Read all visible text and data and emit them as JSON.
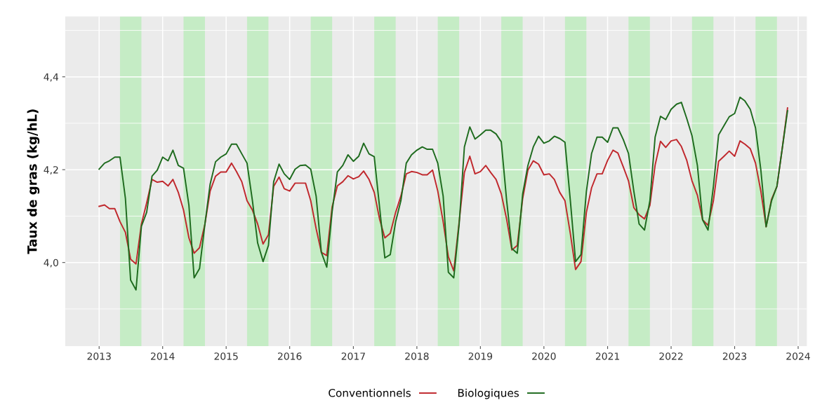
{
  "chart_data": {
    "type": "line",
    "ylabel": "Taux de gras (kg/hL)",
    "x": [
      "2013-01",
      "2013-02",
      "2013-03",
      "2013-04",
      "2013-05",
      "2013-06",
      "2013-07",
      "2013-08",
      "2013-09",
      "2013-10",
      "2013-11",
      "2013-12",
      "2014-01",
      "2014-02",
      "2014-03",
      "2014-04",
      "2014-05",
      "2014-06",
      "2014-07",
      "2014-08",
      "2014-09",
      "2014-10",
      "2014-11",
      "2014-12",
      "2015-01",
      "2015-02",
      "2015-03",
      "2015-04",
      "2015-05",
      "2015-06",
      "2015-07",
      "2015-08",
      "2015-09",
      "2015-10",
      "2015-11",
      "2015-12",
      "2016-01",
      "2016-02",
      "2016-03",
      "2016-04",
      "2016-05",
      "2016-06",
      "2016-07",
      "2016-08",
      "2016-09",
      "2016-10",
      "2016-11",
      "2016-12",
      "2017-01",
      "2017-02",
      "2017-03",
      "2017-04",
      "2017-05",
      "2017-06",
      "2017-07",
      "2017-08",
      "2017-09",
      "2017-10",
      "2017-11",
      "2017-12",
      "2018-01",
      "2018-02",
      "2018-03",
      "2018-04",
      "2018-05",
      "2018-06",
      "2018-07",
      "2018-08",
      "2018-09",
      "2018-10",
      "2018-11",
      "2018-12",
      "2019-01",
      "2019-02",
      "2019-03",
      "2019-04",
      "2019-05",
      "2019-06",
      "2019-07",
      "2019-08",
      "2019-09",
      "2019-10",
      "2019-11",
      "2019-12",
      "2020-01",
      "2020-02",
      "2020-03",
      "2020-04",
      "2020-05",
      "2020-06",
      "2020-07",
      "2020-08",
      "2020-09",
      "2020-10",
      "2020-11",
      "2020-12",
      "2021-01",
      "2021-02",
      "2021-03",
      "2021-04",
      "2021-05",
      "2021-06",
      "2021-07",
      "2021-08",
      "2021-09",
      "2021-10",
      "2021-11",
      "2021-12",
      "2022-01",
      "2022-02",
      "2022-03",
      "2022-04",
      "2022-05",
      "2022-06",
      "2022-07",
      "2022-08",
      "2022-09",
      "2022-10",
      "2022-11",
      "2022-12",
      "2023-01",
      "2023-02",
      "2023-03",
      "2023-04",
      "2023-05",
      "2023-06",
      "2023-07",
      "2023-08",
      "2023-09",
      "2023-10",
      "2023-11"
    ],
    "series": [
      {
        "name": "Conventionnels",
        "color": "#c0282d",
        "values": [
          4.121,
          4.124,
          4.116,
          4.116,
          4.088,
          4.065,
          4.007,
          3.997,
          4.083,
          4.128,
          4.179,
          4.173,
          4.175,
          4.165,
          4.179,
          4.151,
          4.113,
          4.053,
          4.02,
          4.032,
          4.083,
          4.154,
          4.186,
          4.195,
          4.195,
          4.214,
          4.196,
          4.174,
          4.133,
          4.113,
          4.083,
          4.04,
          4.06,
          4.164,
          4.184,
          4.159,
          4.154,
          4.171,
          4.171,
          4.171,
          4.133,
          4.073,
          4.022,
          4.015,
          4.12,
          4.165,
          4.174,
          4.187,
          4.18,
          4.185,
          4.197,
          4.179,
          4.151,
          4.093,
          4.053,
          4.063,
          4.108,
          4.143,
          4.191,
          4.196,
          4.194,
          4.189,
          4.189,
          4.199,
          4.154,
          4.088,
          4.012,
          3.982,
          4.088,
          4.194,
          4.229,
          4.191,
          4.196,
          4.209,
          4.194,
          4.179,
          4.148,
          4.093,
          4.027,
          4.037,
          4.138,
          4.199,
          4.219,
          4.212,
          4.189,
          4.191,
          4.179,
          4.151,
          4.133,
          4.062,
          3.985,
          4.002,
          4.108,
          4.161,
          4.191,
          4.191,
          4.22,
          4.242,
          4.236,
          4.206,
          4.176,
          4.118,
          4.103,
          4.094,
          4.123,
          4.21,
          4.261,
          4.248,
          4.262,
          4.265,
          4.25,
          4.22,
          4.176,
          4.145,
          4.092,
          4.08,
          4.133,
          4.218,
          4.229,
          4.24,
          4.229,
          4.262,
          4.255,
          4.245,
          4.214,
          4.153,
          4.077,
          4.136,
          4.164,
          4.244,
          4.333
        ]
      },
      {
        "name": "Biologiques",
        "color": "#1e6b1e",
        "values": [
          4.201,
          4.214,
          4.219,
          4.227,
          4.227,
          4.138,
          3.962,
          3.941,
          4.078,
          4.108,
          4.186,
          4.199,
          4.227,
          4.219,
          4.242,
          4.209,
          4.203,
          4.123,
          3.967,
          3.987,
          4.083,
          4.169,
          4.217,
          4.227,
          4.234,
          4.255,
          4.255,
          4.234,
          4.214,
          4.133,
          4.042,
          4.002,
          4.037,
          4.174,
          4.212,
          4.191,
          4.179,
          4.201,
          4.209,
          4.21,
          4.201,
          4.143,
          4.022,
          3.99,
          4.11,
          4.195,
          4.209,
          4.232,
          4.218,
          4.229,
          4.257,
          4.234,
          4.228,
          4.118,
          4.01,
          4.017,
          4.088,
          4.133,
          4.214,
          4.232,
          4.242,
          4.249,
          4.244,
          4.244,
          4.214,
          4.143,
          3.979,
          3.967,
          4.083,
          4.249,
          4.292,
          4.266,
          4.275,
          4.285,
          4.285,
          4.277,
          4.26,
          4.133,
          4.03,
          4.02,
          4.148,
          4.209,
          4.249,
          4.272,
          4.257,
          4.262,
          4.272,
          4.267,
          4.259,
          4.133,
          4.002,
          4.017,
          4.153,
          4.235,
          4.27,
          4.27,
          4.259,
          4.29,
          4.29,
          4.265,
          4.235,
          4.153,
          4.083,
          4.07,
          4.133,
          4.27,
          4.315,
          4.308,
          4.33,
          4.341,
          4.345,
          4.31,
          4.273,
          4.209,
          4.092,
          4.07,
          4.164,
          4.275,
          4.295,
          4.314,
          4.321,
          4.356,
          4.348,
          4.33,
          4.29,
          4.198,
          4.077,
          4.133,
          4.164,
          4.244,
          4.327
        ]
      }
    ],
    "bands": [
      {
        "axis": "x",
        "from": "2013-05",
        "to": "2013-09",
        "color": "#c5ecc5"
      },
      {
        "axis": "x",
        "from": "2014-05",
        "to": "2014-09",
        "color": "#c5ecc5"
      },
      {
        "axis": "x",
        "from": "2015-05",
        "to": "2015-09",
        "color": "#c5ecc5"
      },
      {
        "axis": "x",
        "from": "2016-05",
        "to": "2016-09",
        "color": "#c5ecc5"
      },
      {
        "axis": "x",
        "from": "2017-05",
        "to": "2017-09",
        "color": "#c5ecc5"
      },
      {
        "axis": "x",
        "from": "2018-05",
        "to": "2018-09",
        "color": "#c5ecc5"
      },
      {
        "axis": "x",
        "from": "2019-05",
        "to": "2019-09",
        "color": "#c5ecc5"
      },
      {
        "axis": "x",
        "from": "2020-05",
        "to": "2020-09",
        "color": "#c5ecc5"
      },
      {
        "axis": "x",
        "from": "2021-05",
        "to": "2021-09",
        "color": "#c5ecc5"
      },
      {
        "axis": "x",
        "from": "2022-05",
        "to": "2022-09",
        "color": "#c5ecc5"
      },
      {
        "axis": "x",
        "from": "2023-05",
        "to": "2023-09",
        "color": "#c5ecc5"
      }
    ],
    "xlim": [
      "2012-06-20",
      "2024-02-20"
    ],
    "xticks": [
      {
        "value": "2013-01-01",
        "label": "2013"
      },
      {
        "value": "2014-01-01",
        "label": "2014"
      },
      {
        "value": "2015-01-01",
        "label": "2015"
      },
      {
        "value": "2016-01-01",
        "label": "2016"
      },
      {
        "value": "2017-01-01",
        "label": "2017"
      },
      {
        "value": "2018-01-01",
        "label": "2018"
      },
      {
        "value": "2019-01-01",
        "label": "2019"
      },
      {
        "value": "2020-01-01",
        "label": "2020"
      },
      {
        "value": "2021-01-01",
        "label": "2021"
      },
      {
        "value": "2022-01-01",
        "label": "2022"
      },
      {
        "value": "2023-01-01",
        "label": "2023"
      },
      {
        "value": "2024-01-01",
        "label": "2024"
      }
    ],
    "ylim": [
      3.82,
      4.53
    ],
    "yticks": [
      {
        "value": 3.9,
        "label": null
      },
      {
        "value": 4.0,
        "label": "4,0"
      },
      {
        "value": 4.1,
        "label": null
      },
      {
        "value": 4.2,
        "label": "4,2"
      },
      {
        "value": 4.3,
        "label": null
      },
      {
        "value": 4.4,
        "label": "4,4"
      },
      {
        "value": 4.5,
        "label": null
      }
    ],
    "grid": true,
    "legend": "bottom",
    "marker": "none",
    "line_style": "solid"
  }
}
